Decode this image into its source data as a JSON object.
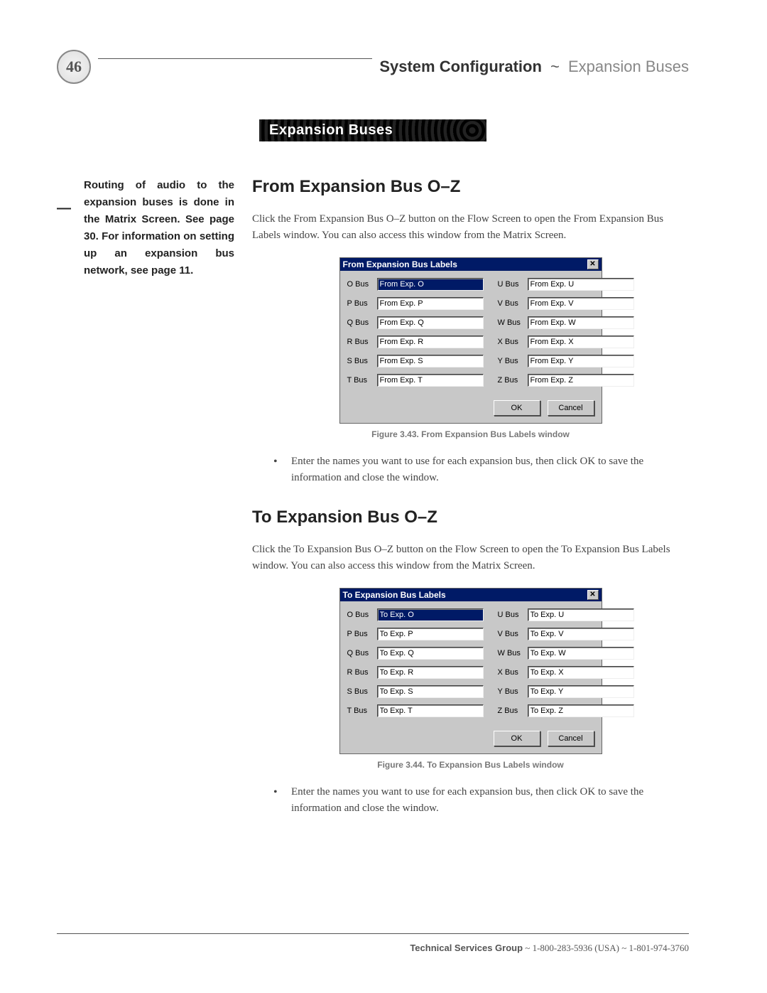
{
  "header": {
    "page_number": "46",
    "title_bold": "System Configuration",
    "tilde": "~",
    "title_light": "Expansion Buses"
  },
  "banner": "Expansion Buses",
  "sidebar_note": "Routing of audio to the expansion buses is done in the Matrix Screen. See page 30. For information on setting up an expansion bus network, see page 11.",
  "section1": {
    "title": "From Expansion Bus O–Z",
    "paragraph": "Click the From Expansion Bus O–Z button on the Flow Screen to open the From Expansion Bus Labels window. You can also access this window from the Matrix Screen.",
    "bullet": "Enter the names you want to use for each expansion bus, then click OK to save the information and close the window.",
    "caption": "Figure 3.43. From Expansion Bus Labels window"
  },
  "section2": {
    "title": "To Expansion Bus O–Z",
    "paragraph": "Click the To Expansion Bus O–Z button on the Flow Screen to open the To Expansion Bus Labels window. You can also access this window from the Matrix Screen.",
    "bullet": "Enter the names you want to use for each expansion bus, then click OK to save the information and close the window.",
    "caption": "Figure 3.44. To Expansion Bus Labels window"
  },
  "dialog_from": {
    "title": "From Expansion Bus Labels",
    "ok": "OK",
    "cancel": "Cancel",
    "left_labels": [
      "O Bus",
      "P Bus",
      "Q Bus",
      "R Bus",
      "S Bus",
      "T Bus"
    ],
    "left_values": [
      "From Exp. O",
      "From Exp. P",
      "From Exp. Q",
      "From Exp. R",
      "From Exp. S",
      "From Exp. T"
    ],
    "right_labels": [
      "U Bus",
      "V Bus",
      "W Bus",
      "X Bus",
      "Y Bus",
      "Z Bus"
    ],
    "right_values": [
      "From Exp. U",
      "From Exp. V",
      "From Exp. W",
      "From Exp. X",
      "From Exp. Y",
      "From Exp. Z"
    ]
  },
  "dialog_to": {
    "title": "To Expansion Bus Labels",
    "ok": "OK",
    "cancel": "Cancel",
    "left_labels": [
      "O Bus",
      "P Bus",
      "Q Bus",
      "R Bus",
      "S Bus",
      "T Bus"
    ],
    "left_values": [
      "To Exp. O",
      "To Exp. P",
      "To Exp. Q",
      "To Exp. R",
      "To Exp. S",
      "To Exp. T"
    ],
    "right_labels": [
      "U Bus",
      "V Bus",
      "W Bus",
      "X Bus",
      "Y Bus",
      "Z Bus"
    ],
    "right_values": [
      "To Exp. U",
      "To Exp. V",
      "To Exp. W",
      "To Exp. X",
      "To Exp. Y",
      "To Exp. Z"
    ]
  },
  "footer": {
    "group": "Technical Services Group",
    "rest": " ~ 1-800-283-5936 (USA) ~ 1-801-974-3760"
  },
  "colors": {
    "titlebar_bg": "#001a66",
    "dialog_bg": "#c8c8c8",
    "text": "#333333"
  }
}
